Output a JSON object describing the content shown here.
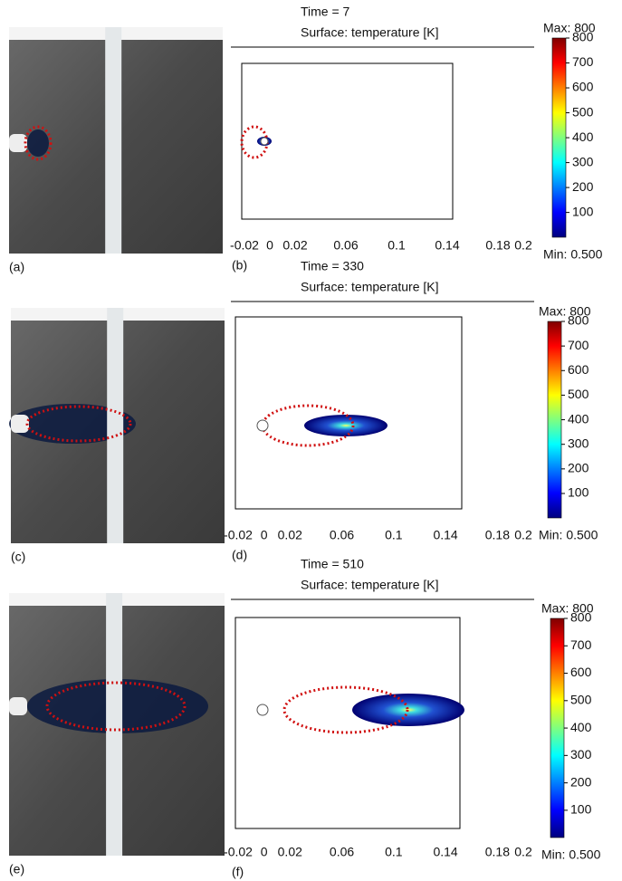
{
  "panels": [
    {
      "photo_label": "(a)",
      "plot_label": "(b)",
      "title": "Time = 7",
      "subtitle": "Surface: temperature [K]",
      "xlim": [
        -0.02,
        0.2
      ],
      "xticks": [
        -0.02,
        0,
        0.02,
        0.06,
        0.1,
        0.14,
        0.18,
        0.2
      ],
      "colorbar": {
        "max_label": "Max: 800",
        "min_label": "Min: 0.500",
        "lim": [
          0.5,
          800
        ],
        "ticks": [
          100,
          200,
          300,
          400,
          500,
          600,
          700,
          800
        ]
      }
    },
    {
      "photo_label": "(c)",
      "plot_label": "(d)",
      "title": "Time = 330",
      "subtitle": "Surface: temperature [K]",
      "xlim": [
        -0.02,
        0.2
      ],
      "xticks": [
        -0.02,
        0,
        0.02,
        0.06,
        0.1,
        0.14,
        0.18,
        0.2
      ],
      "colorbar": {
        "max_label": "Max: 800",
        "min_label": "Min: 0.500",
        "lim": [
          0.5,
          800
        ],
        "ticks": [
          100,
          200,
          300,
          400,
          500,
          600,
          700,
          800
        ]
      }
    },
    {
      "photo_label": "(e)",
      "plot_label": "(f)",
      "title": "Time = 510",
      "subtitle": "Surface: temperature [K]",
      "xlim": [
        -0.02,
        0.2
      ],
      "xticks": [
        -0.02,
        0,
        0.02,
        0.06,
        0.1,
        0.14,
        0.18,
        0.2
      ],
      "colorbar": {
        "max_label": "Max: 800",
        "min_label": "Min: 0.500",
        "lim": [
          0.5,
          800
        ],
        "ticks": [
          100,
          200,
          300,
          400,
          500,
          600,
          700,
          800
        ]
      }
    }
  ]
}
